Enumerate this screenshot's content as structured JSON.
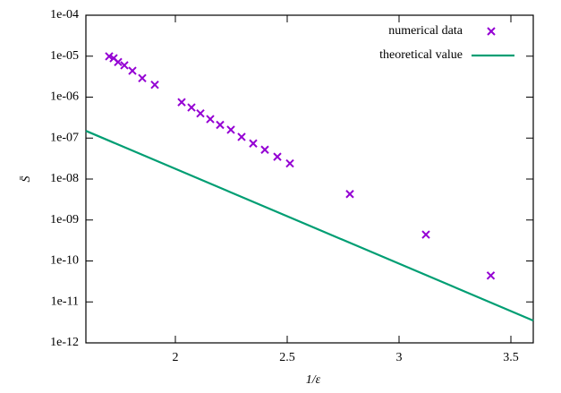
{
  "chart_data": {
    "type": "scatter-line",
    "x_label": "1/ε",
    "y_label": "S̄",
    "log_y": true,
    "legend": "top-right",
    "xlim": [
      1.6,
      3.6
    ],
    "xticks": [
      2,
      2.5,
      3,
      3.5
    ],
    "ylim": [
      1e-12,
      0.0001
    ],
    "yticks": [
      {
        "value": 1e-12,
        "label": "1e-12"
      },
      {
        "value": 1e-11,
        "label": "1e-11"
      },
      {
        "value": 1e-10,
        "label": "1e-10"
      },
      {
        "value": 1e-09,
        "label": "1e-09"
      },
      {
        "value": 1e-08,
        "label": "1e-08"
      },
      {
        "value": 1e-07,
        "label": "1e-07"
      },
      {
        "value": 1e-06,
        "label": "1e-06"
      },
      {
        "value": 1e-05,
        "label": "1e-05"
      },
      {
        "value": 0.0001,
        "label": "1e-04"
      }
    ],
    "series": [
      {
        "name": "numerical data",
        "kind": "points",
        "color": "#9400d3",
        "x": [
          1.704,
          1.724,
          1.744,
          1.772,
          1.808,
          1.852,
          1.908,
          2.028,
          2.072,
          2.112,
          2.156,
          2.2,
          2.248,
          2.296,
          2.348,
          2.4,
          2.456,
          2.512,
          2.78,
          3.12,
          3.41
        ],
        "values": [
          9.9e-06,
          8.9e-06,
          7.2e-06,
          6e-06,
          4.4e-06,
          2.9e-06,
          2e-06,
          7.5e-07,
          5.6e-07,
          4e-07,
          2.9e-07,
          2.1e-07,
          1.6e-07,
          1.07e-07,
          7.4e-08,
          5.2e-08,
          3.5e-08,
          2.4e-08,
          4.3e-09,
          4.4e-10,
          4.4e-11
        ]
      },
      {
        "name": "theoretical value",
        "kind": "line",
        "color": "#009e73",
        "x": [
          1.6,
          3.6
        ],
        "values": [
          1.5e-07,
          3.5e-12
        ]
      }
    ]
  }
}
